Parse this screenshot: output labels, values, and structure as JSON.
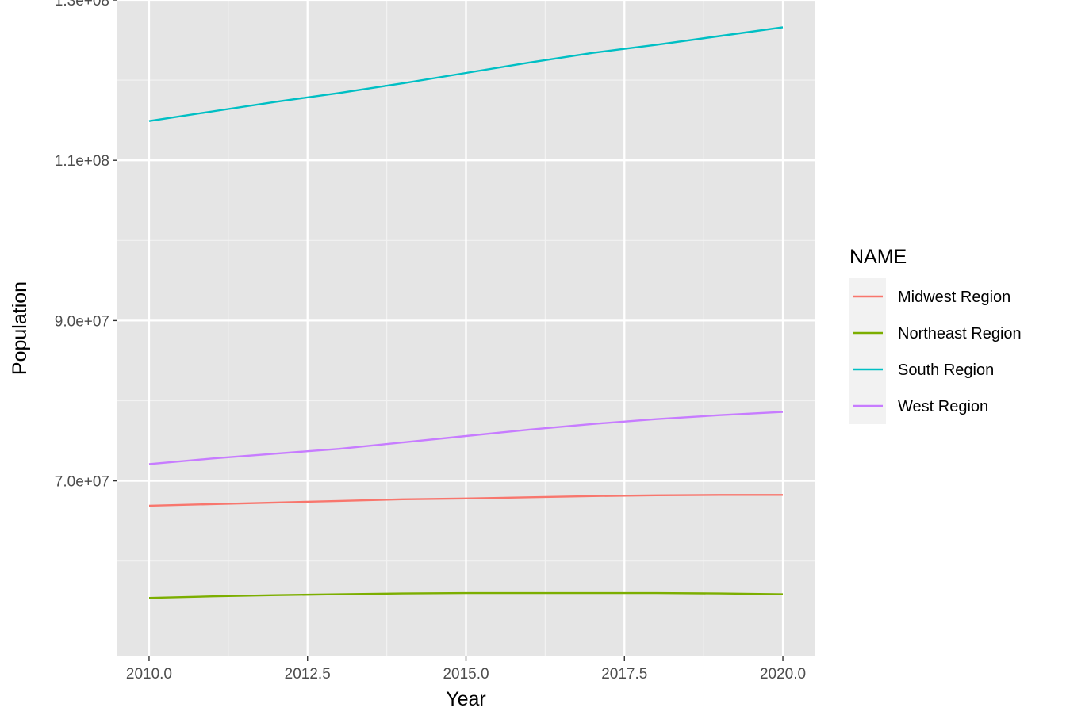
{
  "chart_data": {
    "type": "line",
    "xlabel": "Year",
    "ylabel": "Population",
    "xlim": [
      2009.5,
      2020.5
    ],
    "ylim": [
      48100000,
      130000000
    ],
    "x_ticks": [
      2010.0,
      2012.5,
      2015.0,
      2017.5,
      2020.0
    ],
    "x_tick_labels": [
      "2010.0",
      "2012.5",
      "2015.0",
      "2017.5",
      "2020.0"
    ],
    "x_minor_ticks": [
      2011.25,
      2013.75,
      2016.25,
      2018.75
    ],
    "y_ticks": [
      70000000,
      90000000,
      110000000,
      130000000
    ],
    "y_tick_labels": [
      "7.0e+07",
      "9.0e+07",
      "1.1e+08",
      "1.3e+08"
    ],
    "y_minor_ticks": [
      60000000,
      80000000,
      100000000,
      120000000
    ],
    "grid": true,
    "legend": {
      "title": "NAME",
      "position": "right"
    },
    "x": [
      2010,
      2011,
      2012,
      2013,
      2014,
      2015,
      2016,
      2017,
      2018,
      2019,
      2020
    ],
    "series": [
      {
        "name": "Midwest Region",
        "color": "#F8766D",
        "values": [
          66900000,
          67100000,
          67300000,
          67500000,
          67700000,
          67800000,
          67950000,
          68100000,
          68200000,
          68250000,
          68250000
        ]
      },
      {
        "name": "Northeast Region",
        "color": "#7CAE00",
        "values": [
          55400000,
          55600000,
          55750000,
          55850000,
          55950000,
          56000000,
          56000000,
          56000000,
          56000000,
          55950000,
          55850000
        ]
      },
      {
        "name": "South Region",
        "color": "#00BFC4",
        "values": [
          114900000,
          116100000,
          117300000,
          118400000,
          119600000,
          120900000,
          122200000,
          123400000,
          124400000,
          125500000,
          126600000
        ]
      },
      {
        "name": "West Region",
        "color": "#C77CFF",
        "values": [
          72100000,
          72800000,
          73400000,
          74000000,
          74800000,
          75600000,
          76400000,
          77100000,
          77700000,
          78200000,
          78600000
        ]
      }
    ]
  }
}
